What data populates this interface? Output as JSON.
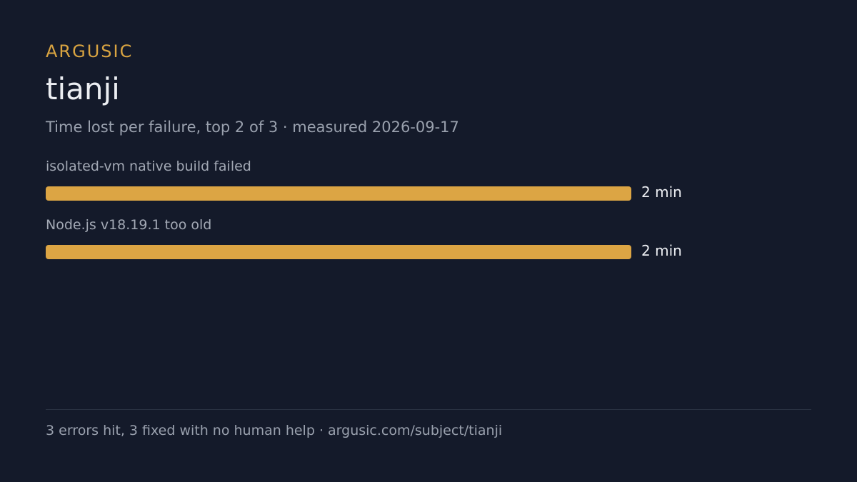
{
  "brand": "ARGUSIC",
  "chart_data": {
    "type": "bar",
    "orientation": "horizontal",
    "title": "tianji",
    "subtitle": "Time lost per failure, top 2 of 3 · measured 2026-09-17",
    "categories": [
      "isolated-vm native build failed",
      "Node.js v18.19.1 too old"
    ],
    "values": [
      2,
      2
    ],
    "value_labels": [
      "2 min",
      "2 min"
    ],
    "color": "#dca544"
  },
  "footer": "3 errors hit, 3 fixed with no human help · argusic.com/subject/tianji"
}
